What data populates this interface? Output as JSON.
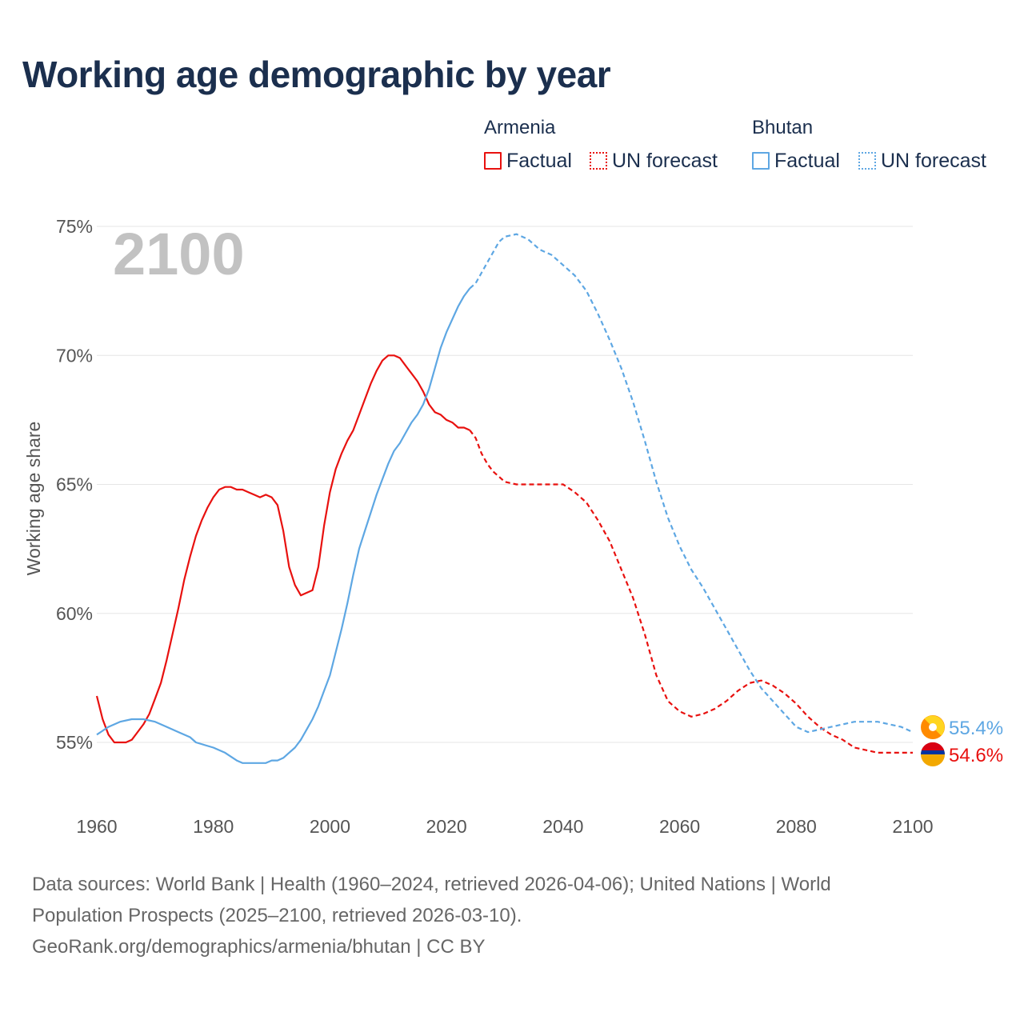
{
  "title": "Working age demographic by year",
  "legend": {
    "armenia": {
      "name": "Armenia",
      "factual": "Factual",
      "forecast": "UN forecast"
    },
    "bhutan": {
      "name": "Bhutan",
      "factual": "Factual",
      "forecast": "UN forecast"
    }
  },
  "colors": {
    "armenia": "#e8110f",
    "bhutan": "#5ea7e3",
    "title": "#1b2f4e"
  },
  "footer": {
    "line1": "Data sources: World Bank | Health (1960–2024, retrieved 2026-04-06); United Nations | World",
    "line2": "Population Prospects (2025–2100, retrieved 2026-03-10).",
    "line3": "GeoRank.org/demographics/armenia/bhutan | CC BY"
  },
  "chart_data": {
    "type": "line",
    "title": "Working age demographic by year",
    "year_label": "2100",
    "xlabel": "",
    "ylabel": "Working age share",
    "xlim": [
      1960,
      2100
    ],
    "ylim": [
      53,
      76
    ],
    "x_ticks": [
      1960,
      1980,
      2000,
      2020,
      2040,
      2060,
      2080,
      2100
    ],
    "y_ticks": [
      {
        "value": 55,
        "label": "55%"
      },
      {
        "value": 60,
        "label": "60%"
      },
      {
        "value": 65,
        "label": "65%"
      },
      {
        "value": 70,
        "label": "70%"
      },
      {
        "value": 75,
        "label": "75%"
      }
    ],
    "factual_end_year": 2024,
    "series": [
      {
        "name": "Armenia",
        "color": "#e8110f",
        "end_label": "54.6%",
        "flag_icon": "armenia-flag-icon",
        "points": [
          [
            1960,
            56.8
          ],
          [
            1961,
            55.9
          ],
          [
            1962,
            55.3
          ],
          [
            1963,
            55.0
          ],
          [
            1964,
            55.0
          ],
          [
            1965,
            55.0
          ],
          [
            1966,
            55.1
          ],
          [
            1967,
            55.4
          ],
          [
            1968,
            55.7
          ],
          [
            1969,
            56.1
          ],
          [
            1970,
            56.7
          ],
          [
            1971,
            57.3
          ],
          [
            1972,
            58.2
          ],
          [
            1973,
            59.2
          ],
          [
            1974,
            60.2
          ],
          [
            1975,
            61.3
          ],
          [
            1976,
            62.2
          ],
          [
            1977,
            63.0
          ],
          [
            1978,
            63.6
          ],
          [
            1979,
            64.1
          ],
          [
            1980,
            64.5
          ],
          [
            1981,
            64.8
          ],
          [
            1982,
            64.9
          ],
          [
            1983,
            64.9
          ],
          [
            1984,
            64.8
          ],
          [
            1985,
            64.8
          ],
          [
            1986,
            64.7
          ],
          [
            1987,
            64.6
          ],
          [
            1988,
            64.5
          ],
          [
            1989,
            64.6
          ],
          [
            1990,
            64.5
          ],
          [
            1991,
            64.2
          ],
          [
            1992,
            63.2
          ],
          [
            1993,
            61.8
          ],
          [
            1994,
            61.1
          ],
          [
            1995,
            60.7
          ],
          [
            1996,
            60.8
          ],
          [
            1997,
            60.9
          ],
          [
            1998,
            61.8
          ],
          [
            1999,
            63.4
          ],
          [
            2000,
            64.7
          ],
          [
            2001,
            65.6
          ],
          [
            2002,
            66.2
          ],
          [
            2003,
            66.7
          ],
          [
            2004,
            67.1
          ],
          [
            2005,
            67.7
          ],
          [
            2006,
            68.3
          ],
          [
            2007,
            68.9
          ],
          [
            2008,
            69.4
          ],
          [
            2009,
            69.8
          ],
          [
            2010,
            70.0
          ],
          [
            2011,
            70.0
          ],
          [
            2012,
            69.9
          ],
          [
            2013,
            69.6
          ],
          [
            2014,
            69.3
          ],
          [
            2015,
            69.0
          ],
          [
            2016,
            68.6
          ],
          [
            2017,
            68.1
          ],
          [
            2018,
            67.8
          ],
          [
            2019,
            67.7
          ],
          [
            2020,
            67.5
          ],
          [
            2021,
            67.4
          ],
          [
            2022,
            67.2
          ],
          [
            2023,
            67.2
          ],
          [
            2024,
            67.1
          ],
          [
            2025,
            66.8
          ],
          [
            2026,
            66.2
          ],
          [
            2027,
            65.8
          ],
          [
            2028,
            65.5
          ],
          [
            2029,
            65.3
          ],
          [
            2030,
            65.1
          ],
          [
            2032,
            65.0
          ],
          [
            2035,
            65.0
          ],
          [
            2038,
            65.0
          ],
          [
            2040,
            65.0
          ],
          [
            2042,
            64.7
          ],
          [
            2044,
            64.3
          ],
          [
            2046,
            63.6
          ],
          [
            2048,
            62.8
          ],
          [
            2050,
            61.7
          ],
          [
            2052,
            60.6
          ],
          [
            2054,
            59.2
          ],
          [
            2056,
            57.6
          ],
          [
            2058,
            56.6
          ],
          [
            2060,
            56.2
          ],
          [
            2062,
            56.0
          ],
          [
            2064,
            56.1
          ],
          [
            2066,
            56.3
          ],
          [
            2068,
            56.6
          ],
          [
            2070,
            57.0
          ],
          [
            2072,
            57.3
          ],
          [
            2074,
            57.4
          ],
          [
            2076,
            57.2
          ],
          [
            2078,
            56.9
          ],
          [
            2080,
            56.5
          ],
          [
            2082,
            56.0
          ],
          [
            2084,
            55.6
          ],
          [
            2086,
            55.3
          ],
          [
            2088,
            55.1
          ],
          [
            2090,
            54.8
          ],
          [
            2092,
            54.7
          ],
          [
            2094,
            54.6
          ],
          [
            2096,
            54.6
          ],
          [
            2098,
            54.6
          ],
          [
            2100,
            54.6
          ]
        ]
      },
      {
        "name": "Bhutan",
        "color": "#5ea7e3",
        "end_label": "55.4%",
        "flag_icon": "bhutan-flag-icon",
        "points": [
          [
            1960,
            55.3
          ],
          [
            1962,
            55.6
          ],
          [
            1964,
            55.8
          ],
          [
            1966,
            55.9
          ],
          [
            1968,
            55.9
          ],
          [
            1970,
            55.8
          ],
          [
            1972,
            55.6
          ],
          [
            1974,
            55.4
          ],
          [
            1976,
            55.2
          ],
          [
            1977,
            55.0
          ],
          [
            1980,
            54.8
          ],
          [
            1982,
            54.6
          ],
          [
            1984,
            54.3
          ],
          [
            1985,
            54.2
          ],
          [
            1988,
            54.2
          ],
          [
            1989,
            54.2
          ],
          [
            1990,
            54.3
          ],
          [
            1991,
            54.3
          ],
          [
            1992,
            54.4
          ],
          [
            1993,
            54.6
          ],
          [
            1994,
            54.8
          ],
          [
            1995,
            55.1
          ],
          [
            1996,
            55.5
          ],
          [
            1997,
            55.9
          ],
          [
            1998,
            56.4
          ],
          [
            1999,
            57.0
          ],
          [
            2000,
            57.6
          ],
          [
            2001,
            58.5
          ],
          [
            2002,
            59.4
          ],
          [
            2003,
            60.4
          ],
          [
            2004,
            61.5
          ],
          [
            2005,
            62.5
          ],
          [
            2006,
            63.2
          ],
          [
            2007,
            63.9
          ],
          [
            2008,
            64.6
          ],
          [
            2009,
            65.2
          ],
          [
            2010,
            65.8
          ],
          [
            2011,
            66.3
          ],
          [
            2012,
            66.6
          ],
          [
            2013,
            67.0
          ],
          [
            2014,
            67.4
          ],
          [
            2015,
            67.7
          ],
          [
            2016,
            68.1
          ],
          [
            2017,
            68.7
          ],
          [
            2018,
            69.5
          ],
          [
            2019,
            70.3
          ],
          [
            2020,
            70.9
          ],
          [
            2021,
            71.4
          ],
          [
            2022,
            71.9
          ],
          [
            2023,
            72.3
          ],
          [
            2024,
            72.6
          ],
          [
            2025,
            72.8
          ],
          [
            2026,
            73.2
          ],
          [
            2027,
            73.6
          ],
          [
            2028,
            74.0
          ],
          [
            2029,
            74.4
          ],
          [
            2030,
            74.6
          ],
          [
            2032,
            74.7
          ],
          [
            2034,
            74.5
          ],
          [
            2036,
            74.1
          ],
          [
            2038,
            73.9
          ],
          [
            2040,
            73.5
          ],
          [
            2042,
            73.1
          ],
          [
            2044,
            72.5
          ],
          [
            2046,
            71.6
          ],
          [
            2048,
            70.6
          ],
          [
            2050,
            69.5
          ],
          [
            2052,
            68.2
          ],
          [
            2054,
            66.7
          ],
          [
            2056,
            65.1
          ],
          [
            2058,
            63.7
          ],
          [
            2060,
            62.6
          ],
          [
            2062,
            61.7
          ],
          [
            2064,
            61.0
          ],
          [
            2066,
            60.2
          ],
          [
            2068,
            59.4
          ],
          [
            2070,
            58.6
          ],
          [
            2072,
            57.8
          ],
          [
            2074,
            57.1
          ],
          [
            2076,
            56.6
          ],
          [
            2078,
            56.1
          ],
          [
            2080,
            55.6
          ],
          [
            2082,
            55.4
          ],
          [
            2084,
            55.5
          ],
          [
            2086,
            55.6
          ],
          [
            2088,
            55.7
          ],
          [
            2090,
            55.8
          ],
          [
            2092,
            55.8
          ],
          [
            2094,
            55.8
          ],
          [
            2096,
            55.7
          ],
          [
            2098,
            55.6
          ],
          [
            2100,
            55.4
          ]
        ]
      }
    ]
  }
}
